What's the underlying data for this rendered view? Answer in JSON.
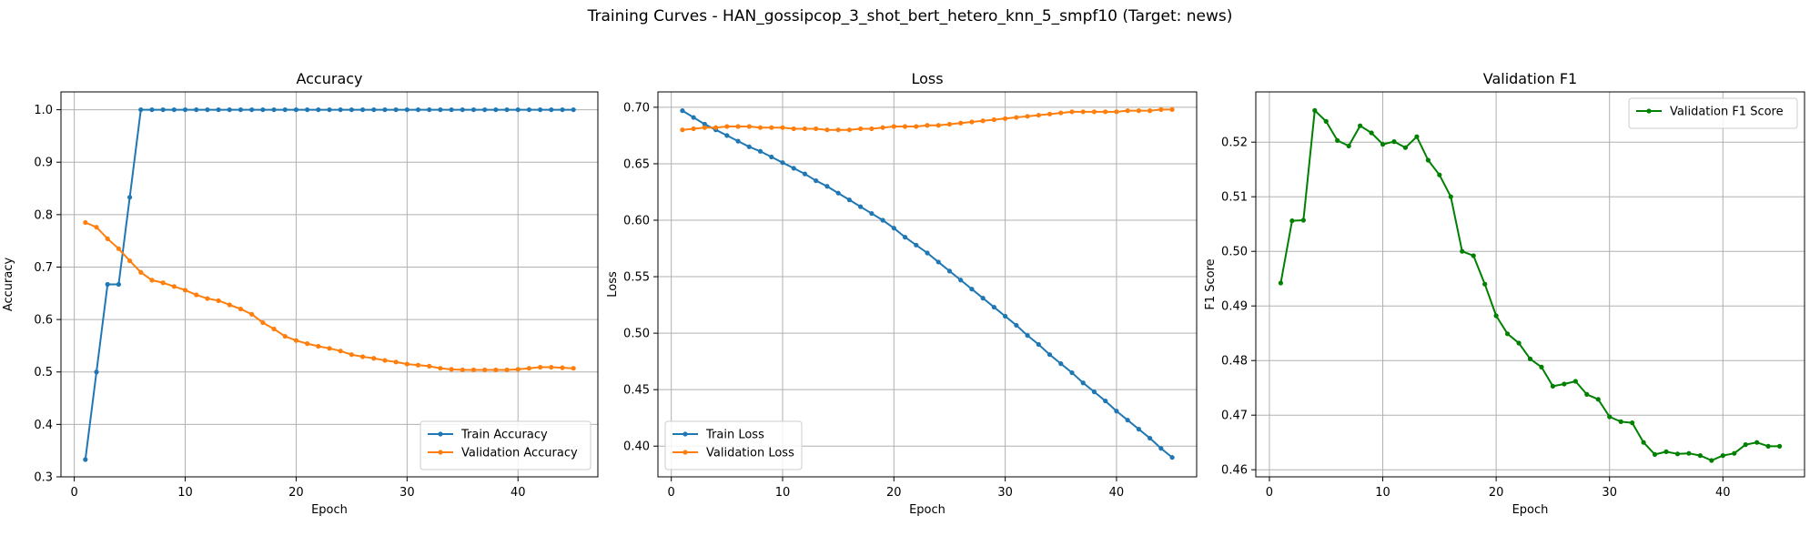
{
  "figure": {
    "suptitle": "Training Curves - HAN_gossipcop_3_shot_bert_hetero_knn_5_smpf10 (Target: news)"
  },
  "colors": {
    "blue": "#1f77b4",
    "orange": "#ff7f0e",
    "green": "#008000",
    "grid": "#b0b0b0"
  },
  "chart_data": [
    {
      "type": "line",
      "title": "Accuracy",
      "xlabel": "Epoch",
      "ylabel": "Accuracy",
      "xlim": [
        -1.2,
        47.2
      ],
      "ylim": [
        0.3,
        1.034
      ],
      "xticks": [
        0,
        10,
        20,
        30,
        40
      ],
      "yticks": [
        0.3,
        0.4,
        0.5,
        0.6,
        0.7,
        0.8,
        0.9,
        1.0
      ],
      "ytick_labels": [
        "0.3",
        "0.4",
        "0.5",
        "0.6",
        "0.7",
        "0.8",
        "0.9",
        "1.0"
      ],
      "grid": true,
      "legend": "lower-right",
      "x": [
        1,
        2,
        3,
        4,
        5,
        6,
        7,
        8,
        9,
        10,
        11,
        12,
        13,
        14,
        15,
        16,
        17,
        18,
        19,
        20,
        21,
        22,
        23,
        24,
        25,
        26,
        27,
        28,
        29,
        30,
        31,
        32,
        33,
        34,
        35,
        36,
        37,
        38,
        39,
        40,
        41,
        42,
        43,
        44,
        45
      ],
      "series": [
        {
          "name": "Train Accuracy",
          "color": "#1f77b4",
          "values": [
            0.333,
            0.5,
            0.667,
            0.667,
            0.833,
            1,
            1,
            1,
            1,
            1,
            1,
            1,
            1,
            1,
            1,
            1,
            1,
            1,
            1,
            1,
            1,
            1,
            1,
            1,
            1,
            1,
            1,
            1,
            1,
            1,
            1,
            1,
            1,
            1,
            1,
            1,
            1,
            1,
            1,
            1,
            1,
            1,
            1,
            1,
            1
          ]
        },
        {
          "name": "Validation Accuracy",
          "color": "#ff7f0e",
          "values": [
            0.785,
            0.776,
            0.754,
            0.735,
            0.712,
            0.69,
            0.675,
            0.67,
            0.663,
            0.656,
            0.647,
            0.64,
            0.636,
            0.628,
            0.62,
            0.61,
            0.594,
            0.582,
            0.568,
            0.56,
            0.554,
            0.549,
            0.545,
            0.54,
            0.533,
            0.529,
            0.526,
            0.522,
            0.519,
            0.515,
            0.513,
            0.511,
            0.507,
            0.505,
            0.504,
            0.504,
            0.504,
            0.504,
            0.504,
            0.505,
            0.507,
            0.509,
            0.509,
            0.508,
            0.507
          ]
        }
      ]
    },
    {
      "type": "line",
      "title": "Loss",
      "xlabel": "Epoch",
      "ylabel": "Loss",
      "xlim": [
        -1.2,
        47.2
      ],
      "ylim": [
        0.3728,
        0.7136
      ],
      "xticks": [
        0,
        10,
        20,
        30,
        40
      ],
      "yticks": [
        0.4,
        0.45,
        0.5,
        0.55,
        0.6,
        0.65,
        0.7
      ],
      "ytick_labels": [
        "0.40",
        "0.45",
        "0.50",
        "0.55",
        "0.60",
        "0.65",
        "0.70"
      ],
      "grid": true,
      "legend": "lower-left",
      "x": [
        1,
        2,
        3,
        4,
        5,
        6,
        7,
        8,
        9,
        10,
        11,
        12,
        13,
        14,
        15,
        16,
        17,
        18,
        19,
        20,
        21,
        22,
        23,
        24,
        25,
        26,
        27,
        28,
        29,
        30,
        31,
        32,
        33,
        34,
        35,
        36,
        37,
        38,
        39,
        40,
        41,
        42,
        43,
        44,
        45
      ],
      "series": [
        {
          "name": "Train Loss",
          "color": "#1f77b4",
          "values": [
            0.697,
            0.691,
            0.685,
            0.68,
            0.675,
            0.67,
            0.665,
            0.661,
            0.656,
            0.651,
            0.646,
            0.641,
            0.635,
            0.63,
            0.624,
            0.618,
            0.612,
            0.606,
            0.6,
            0.593,
            0.585,
            0.578,
            0.571,
            0.563,
            0.555,
            0.547,
            0.539,
            0.531,
            0.523,
            0.515,
            0.507,
            0.498,
            0.49,
            0.481,
            0.473,
            0.465,
            0.456,
            0.448,
            0.44,
            0.431,
            0.423,
            0.415,
            0.407,
            0.398,
            0.39
          ]
        },
        {
          "name": "Validation Loss",
          "color": "#ff7f0e",
          "values": [
            0.68,
            0.681,
            0.682,
            0.682,
            0.683,
            0.683,
            0.683,
            0.682,
            0.682,
            0.682,
            0.681,
            0.681,
            0.681,
            0.68,
            0.68,
            0.68,
            0.681,
            0.681,
            0.682,
            0.683,
            0.683,
            0.683,
            0.684,
            0.684,
            0.685,
            0.686,
            0.687,
            0.688,
            0.689,
            0.69,
            0.691,
            0.692,
            0.693,
            0.694,
            0.695,
            0.696,
            0.696,
            0.696,
            0.696,
            0.696,
            0.697,
            0.697,
            0.697,
            0.698,
            0.698
          ]
        }
      ]
    },
    {
      "type": "line",
      "title": "Validation F1",
      "xlabel": "Epoch",
      "ylabel": "F1 Score",
      "xlim": [
        -1.2,
        47.2
      ],
      "ylim": [
        0.4587,
        0.5292
      ],
      "xticks": [
        0,
        10,
        20,
        30,
        40
      ],
      "yticks": [
        0.46,
        0.47,
        0.48,
        0.49,
        0.5,
        0.51,
        0.52
      ],
      "ytick_labels": [
        "0.46",
        "0.47",
        "0.48",
        "0.49",
        "0.50",
        "0.51",
        "0.52"
      ],
      "grid": true,
      "legend": "top-right",
      "x": [
        1,
        2,
        3,
        4,
        5,
        6,
        7,
        8,
        9,
        10,
        11,
        12,
        13,
        14,
        15,
        16,
        17,
        18,
        19,
        20,
        21,
        22,
        23,
        24,
        25,
        26,
        27,
        28,
        29,
        30,
        31,
        32,
        33,
        34,
        35,
        36,
        37,
        38,
        39,
        40,
        41,
        42,
        43,
        44,
        45
      ],
      "series": [
        {
          "name": "Validation F1 Score",
          "color": "#008000",
          "values": [
            0.4942,
            0.5056,
            0.5057,
            0.5258,
            0.5238,
            0.5203,
            0.5193,
            0.523,
            0.5217,
            0.5196,
            0.5201,
            0.519,
            0.521,
            0.5167,
            0.514,
            0.51,
            0.5,
            0.4992,
            0.494,
            0.4882,
            0.4849,
            0.4832,
            0.4803,
            0.4788,
            0.4753,
            0.4757,
            0.4762,
            0.4738,
            0.4729,
            0.4697,
            0.4688,
            0.4686,
            0.465,
            0.4628,
            0.4633,
            0.4629,
            0.463,
            0.4626,
            0.4617,
            0.4626,
            0.463,
            0.4646,
            0.465,
            0.4643,
            0.4643
          ]
        }
      ]
    }
  ]
}
